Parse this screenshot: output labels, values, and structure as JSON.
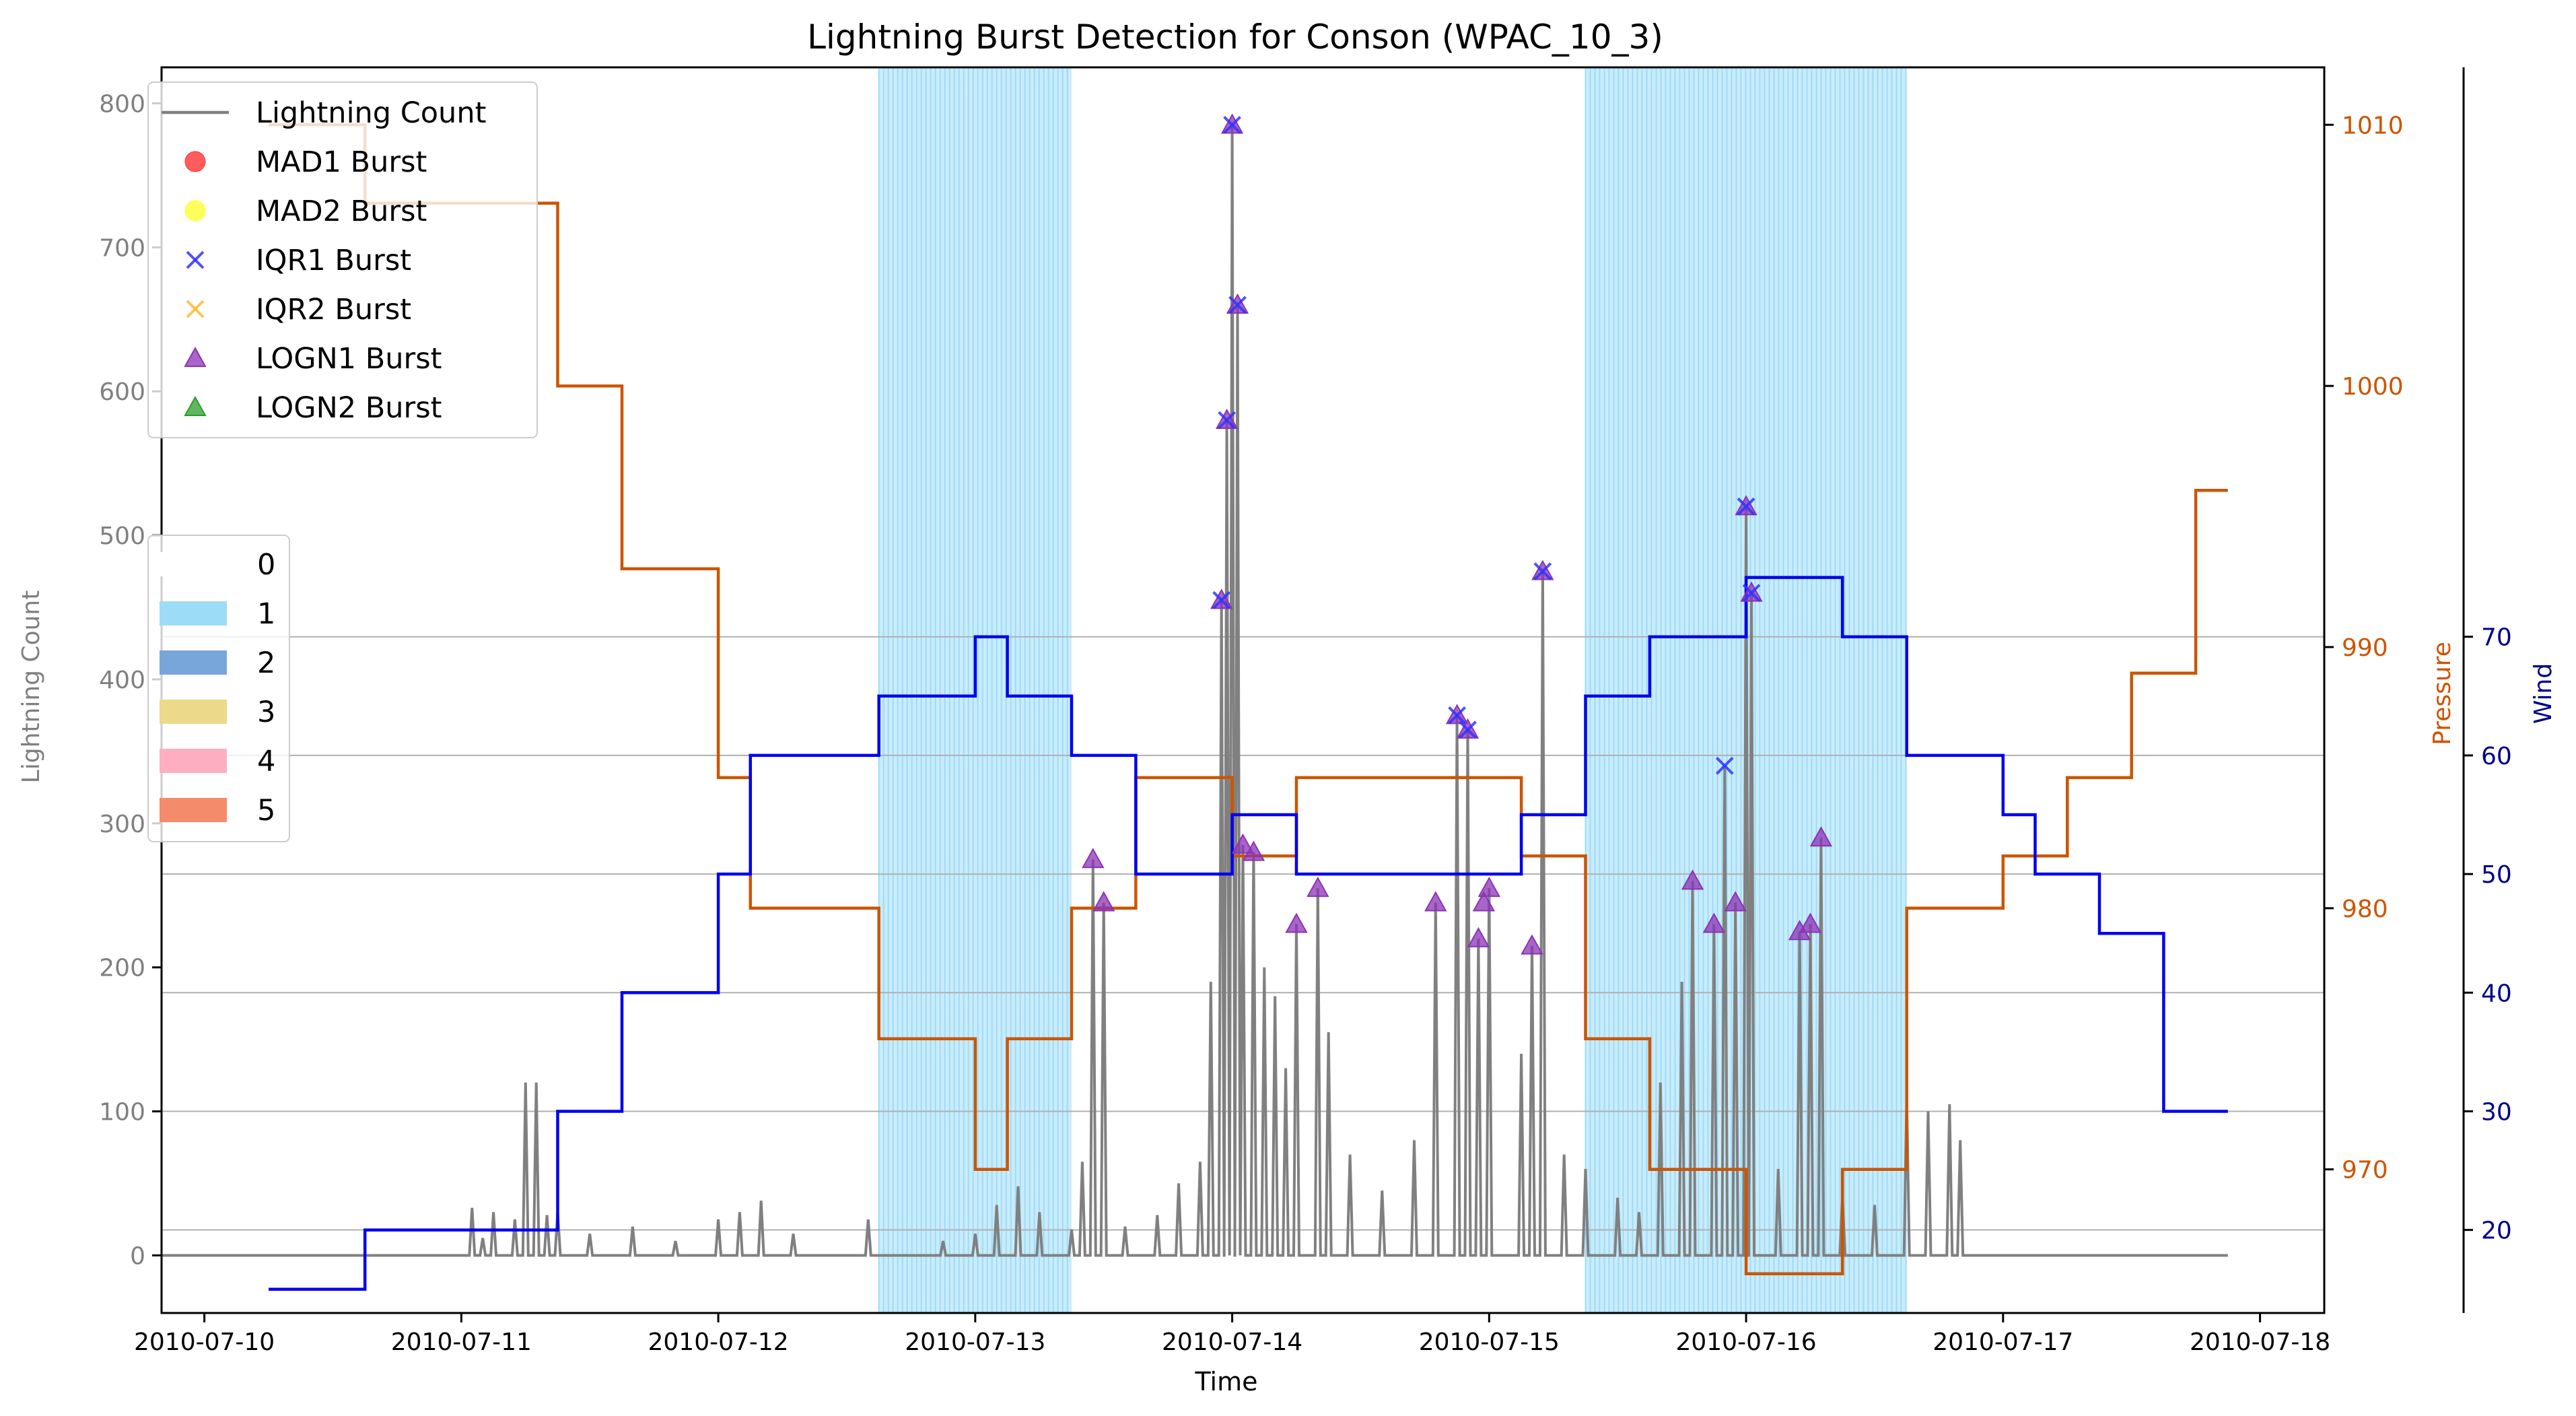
{
  "colors": {
    "lightning": "#808080",
    "pressure": "#cc5500",
    "wind": "#0000ee",
    "wind_axis": "#00008b",
    "shade": "#87cefa",
    "grid": "#b0b0b0",
    "mad1": "#ff3333",
    "mad2": "#ffff33",
    "iqr1": "#3333ff",
    "iqr2": "#ffb833",
    "logn1": "#8b33b5",
    "logn2": "#2a9d2a"
  },
  "chart_data": {
    "type": "line",
    "title": "Lightning Burst Detection for Conson (WPAC_10_3)",
    "xlabel": "Time",
    "xlim": [
      "2010-07-09T20:00",
      "2010-07-18T06:00"
    ],
    "x_ticks": [
      "2010-07-10",
      "2010-07-11",
      "2010-07-12",
      "2010-07-13",
      "2010-07-14",
      "2010-07-15",
      "2010-07-16",
      "2010-07-17",
      "2010-07-18"
    ],
    "y_left": {
      "label": "Lightning Count",
      "ylim": [
        -40,
        825
      ],
      "ticks": [
        0,
        100,
        200,
        300,
        400,
        500,
        600,
        700,
        800
      ]
    },
    "y_pressure": {
      "label": "Pressure",
      "ylim": [
        964.5,
        1012.2
      ],
      "ticks": [
        970,
        980,
        990,
        1000,
        1010
      ]
    },
    "y_wind": {
      "label": "Wind",
      "ylim": [
        13,
        118
      ],
      "ticks": [
        20,
        30,
        40,
        50,
        60,
        70
      ]
    },
    "grid": "horizontal lines on wind axis ticks",
    "legend_top": {
      "placement": "top-left",
      "items": [
        {
          "label": "Lightning Count",
          "marker": "line",
          "color_key": "lightning"
        },
        {
          "label": "MAD1 Burst",
          "marker": "circle",
          "color_key": "mad1"
        },
        {
          "label": "MAD2 Burst",
          "marker": "circle",
          "color_key": "mad2"
        },
        {
          "label": "IQR1 Burst",
          "marker": "x",
          "color_key": "iqr1"
        },
        {
          "label": "IQR2 Burst",
          "marker": "x",
          "color_key": "iqr2"
        },
        {
          "label": "LOGN1 Burst",
          "marker": "triangle",
          "color_key": "logn1"
        },
        {
          "label": "LOGN2 Burst",
          "marker": "triangle",
          "color_key": "logn2"
        }
      ]
    },
    "legend_category": {
      "placement": "middle-left",
      "items": [
        {
          "label": "0",
          "color": "#ffffff"
        },
        {
          "label": "1",
          "color": "#9ddcf7"
        },
        {
          "label": "2",
          "color": "#78a6da"
        },
        {
          "label": "3",
          "color": "#ecd98a"
        },
        {
          "label": "4",
          "color": "#fdafbf"
        },
        {
          "label": "5",
          "color": "#f48b6b"
        }
      ]
    },
    "shaded_spans": [
      {
        "start": "2010-07-12T15:00",
        "end": "2010-07-13T09:00",
        "category": 1
      },
      {
        "start": "2010-07-15T09:00",
        "end": "2010-07-16T15:00",
        "category": 1
      }
    ],
    "series": [
      {
        "name": "Pressure",
        "axis": "pressure",
        "step": true,
        "x": [
          "2010-07-10T06:00",
          "2010-07-10T15:00",
          "2010-07-11T09:00",
          "2010-07-11T15:00",
          "2010-07-12T00:00",
          "2010-07-12T03:00",
          "2010-07-12T15:00",
          "2010-07-13T00:00",
          "2010-07-13T03:00",
          "2010-07-13T09:00",
          "2010-07-13T15:00",
          "2010-07-13T21:00",
          "2010-07-14T00:00",
          "2010-07-14T06:00",
          "2010-07-15T03:00",
          "2010-07-15T09:00",
          "2010-07-15T15:00",
          "2010-07-16T00:00",
          "2010-07-16T09:00",
          "2010-07-16T15:00",
          "2010-07-17T00:00",
          "2010-07-17T06:00",
          "2010-07-17T12:00",
          "2010-07-17T18:00",
          "2010-07-17T21:00"
        ],
        "values": [
          1010,
          1007,
          1000,
          993,
          985,
          980,
          975,
          970,
          975,
          980,
          985,
          985,
          982,
          985,
          982,
          975,
          970,
          966,
          970,
          980,
          982,
          985,
          989,
          996,
          996
        ]
      },
      {
        "name": "Wind",
        "axis": "wind",
        "step": true,
        "x": [
          "2010-07-10T06:00",
          "2010-07-10T15:00",
          "2010-07-11T09:00",
          "2010-07-11T15:00",
          "2010-07-12T00:00",
          "2010-07-12T03:00",
          "2010-07-12T15:00",
          "2010-07-13T00:00",
          "2010-07-13T03:00",
          "2010-07-13T09:00",
          "2010-07-13T15:00",
          "2010-07-13T21:00",
          "2010-07-14T00:00",
          "2010-07-14T06:00",
          "2010-07-15T03:00",
          "2010-07-15T09:00",
          "2010-07-15T15:00",
          "2010-07-16T00:00",
          "2010-07-16T09:00",
          "2010-07-16T15:00",
          "2010-07-17T00:00",
          "2010-07-17T03:00",
          "2010-07-17T09:00",
          "2010-07-17T15:00",
          "2010-07-17T21:00"
        ],
        "values": [
          15,
          20,
          30,
          40,
          50,
          60,
          65,
          70,
          65,
          60,
          50,
          50,
          55,
          50,
          55,
          65,
          70,
          75,
          70,
          60,
          55,
          50,
          45,
          30,
          30
        ]
      },
      {
        "name": "Lightning Count",
        "axis": "left",
        "points": [
          [
            "2010-07-11T01:00",
            33
          ],
          [
            "2010-07-11T02:00",
            12
          ],
          [
            "2010-07-11T03:00",
            30
          ],
          [
            "2010-07-11T05:00",
            25
          ],
          [
            "2010-07-11T06:00",
            120
          ],
          [
            "2010-07-11T07:00",
            120
          ],
          [
            "2010-07-11T08:00",
            28
          ],
          [
            "2010-07-11T09:00",
            30
          ],
          [
            "2010-07-11T12:00",
            15
          ],
          [
            "2010-07-11T16:00",
            20
          ],
          [
            "2010-07-11T20:00",
            10
          ],
          [
            "2010-07-12T00:00",
            25
          ],
          [
            "2010-07-12T02:00",
            30
          ],
          [
            "2010-07-12T04:00",
            38
          ],
          [
            "2010-07-12T07:00",
            15
          ],
          [
            "2010-07-12T14:00",
            25
          ],
          [
            "2010-07-12T21:00",
            10
          ],
          [
            "2010-07-13T00:00",
            15
          ],
          [
            "2010-07-13T02:00",
            35
          ],
          [
            "2010-07-13T04:00",
            48
          ],
          [
            "2010-07-13T06:00",
            30
          ],
          [
            "2010-07-13T09:00",
            18
          ],
          [
            "2010-07-13T10:00",
            65
          ],
          [
            "2010-07-13T11:00",
            275
          ],
          [
            "2010-07-13T12:00",
            245
          ],
          [
            "2010-07-13T14:00",
            20
          ],
          [
            "2010-07-13T17:00",
            28
          ],
          [
            "2010-07-13T19:00",
            50
          ],
          [
            "2010-07-13T21:00",
            65
          ],
          [
            "2010-07-13T22:00",
            190
          ],
          [
            "2010-07-13T23:00",
            455
          ],
          [
            "2010-07-13T23:30",
            580
          ],
          [
            "2010-07-14T00:00",
            785
          ],
          [
            "2010-07-14T00:30",
            660
          ],
          [
            "2010-07-14T01:00",
            285
          ],
          [
            "2010-07-14T02:00",
            280
          ],
          [
            "2010-07-14T03:00",
            200
          ],
          [
            "2010-07-14T04:00",
            180
          ],
          [
            "2010-07-14T05:00",
            130
          ],
          [
            "2010-07-14T06:00",
            230
          ],
          [
            "2010-07-14T08:00",
            255
          ],
          [
            "2010-07-14T09:00",
            155
          ],
          [
            "2010-07-14T11:00",
            70
          ],
          [
            "2010-07-14T14:00",
            45
          ],
          [
            "2010-07-14T17:00",
            80
          ],
          [
            "2010-07-14T19:00",
            245
          ],
          [
            "2010-07-14T21:00",
            375
          ],
          [
            "2010-07-14T22:00",
            365
          ],
          [
            "2010-07-14T23:00",
            220
          ],
          [
            "2010-07-15T00:00",
            255
          ],
          [
            "2010-07-15T03:00",
            140
          ],
          [
            "2010-07-15T04:00",
            215
          ],
          [
            "2010-07-15T05:00",
            475
          ],
          [
            "2010-07-15T07:00",
            70
          ],
          [
            "2010-07-15T09:00",
            60
          ],
          [
            "2010-07-15T12:00",
            40
          ],
          [
            "2010-07-15T14:00",
            30
          ],
          [
            "2010-07-15T16:00",
            120
          ],
          [
            "2010-07-15T18:00",
            190
          ],
          [
            "2010-07-15T19:00",
            260
          ],
          [
            "2010-07-15T21:00",
            230
          ],
          [
            "2010-07-15T22:00",
            340
          ],
          [
            "2010-07-15T23:00",
            245
          ],
          [
            "2010-07-16T00:00",
            520
          ],
          [
            "2010-07-16T00:30",
            460
          ],
          [
            "2010-07-16T03:00",
            60
          ],
          [
            "2010-07-16T05:00",
            225
          ],
          [
            "2010-07-16T06:00",
            230
          ],
          [
            "2010-07-16T07:00",
            290
          ],
          [
            "2010-07-16T09:00",
            40
          ],
          [
            "2010-07-16T12:00",
            35
          ],
          [
            "2010-07-16T15:00",
            110
          ],
          [
            "2010-07-16T17:00",
            100
          ],
          [
            "2010-07-16T19:00",
            105
          ],
          [
            "2010-07-16T20:00",
            80
          ]
        ]
      }
    ],
    "bursts": {
      "iqr1": [
        [
          "2010-07-13T23:00",
          455
        ],
        [
          "2010-07-13T23:30",
          580
        ],
        [
          "2010-07-14T00:00",
          785
        ],
        [
          "2010-07-14T00:30",
          660
        ],
        [
          "2010-07-14T21:00",
          375
        ],
        [
          "2010-07-14T22:00",
          365
        ],
        [
          "2010-07-15T05:00",
          475
        ],
        [
          "2010-07-15T22:00",
          340
        ],
        [
          "2010-07-16T00:00",
          520
        ],
        [
          "2010-07-16T00:30",
          460
        ]
      ],
      "logn1": [
        [
          "2010-07-13T11:00",
          275
        ],
        [
          "2010-07-13T12:00",
          245
        ],
        [
          "2010-07-13T23:00",
          455
        ],
        [
          "2010-07-13T23:30",
          580
        ],
        [
          "2010-07-14T00:00",
          785
        ],
        [
          "2010-07-14T00:30",
          660
        ],
        [
          "2010-07-14T01:00",
          285
        ],
        [
          "2010-07-14T02:00",
          280
        ],
        [
          "2010-07-14T06:00",
          230
        ],
        [
          "2010-07-14T08:00",
          255
        ],
        [
          "2010-07-14T19:00",
          245
        ],
        [
          "2010-07-14T21:00",
          375
        ],
        [
          "2010-07-14T22:00",
          365
        ],
        [
          "2010-07-14T23:00",
          220
        ],
        [
          "2010-07-14T23:30",
          245
        ],
        [
          "2010-07-15T00:00",
          255
        ],
        [
          "2010-07-15T04:00",
          215
        ],
        [
          "2010-07-15T05:00",
          475
        ],
        [
          "2010-07-15T19:00",
          260
        ],
        [
          "2010-07-15T21:00",
          230
        ],
        [
          "2010-07-15T23:00",
          245
        ],
        [
          "2010-07-16T00:00",
          520
        ],
        [
          "2010-07-16T00:30",
          460
        ],
        [
          "2010-07-16T05:00",
          225
        ],
        [
          "2010-07-16T06:00",
          230
        ],
        [
          "2010-07-16T07:00",
          290
        ]
      ]
    }
  }
}
